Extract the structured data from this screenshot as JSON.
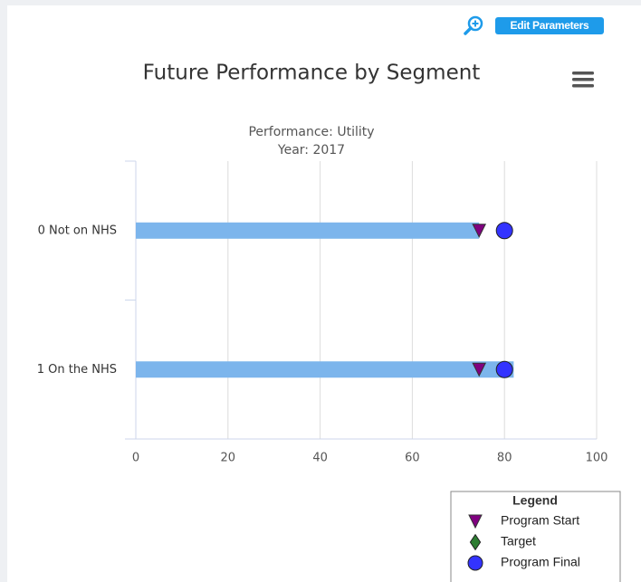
{
  "edit_button": "Edit Parameters",
  "chart_data": {
    "type": "bar",
    "orientation": "horizontal",
    "title": "Future Performance by Segment",
    "subtitle": [
      "Performance: Utility",
      "Year: 2017"
    ],
    "categories": [
      "0 Not on NHS",
      "1 On the NHS"
    ],
    "values": [
      74.5,
      82
    ],
    "color": "#7cb5ec",
    "series": [
      {
        "name": "Program Start",
        "color": "#800080",
        "marker": "triangle-down",
        "values": [
          74.5,
          74.5
        ]
      },
      {
        "name": "Target",
        "color": "#2e7d32",
        "marker": "diamond",
        "values": [
          null,
          null
        ]
      },
      {
        "name": "Program Final",
        "color": "#3333ff",
        "marker": "circle",
        "values": [
          80,
          80
        ]
      }
    ],
    "xlim": [
      0,
      100
    ],
    "xticks": [
      0,
      20,
      40,
      60,
      80,
      100
    ],
    "grid": true,
    "legend_title": "Legend",
    "legend_position": "bottom-right"
  }
}
